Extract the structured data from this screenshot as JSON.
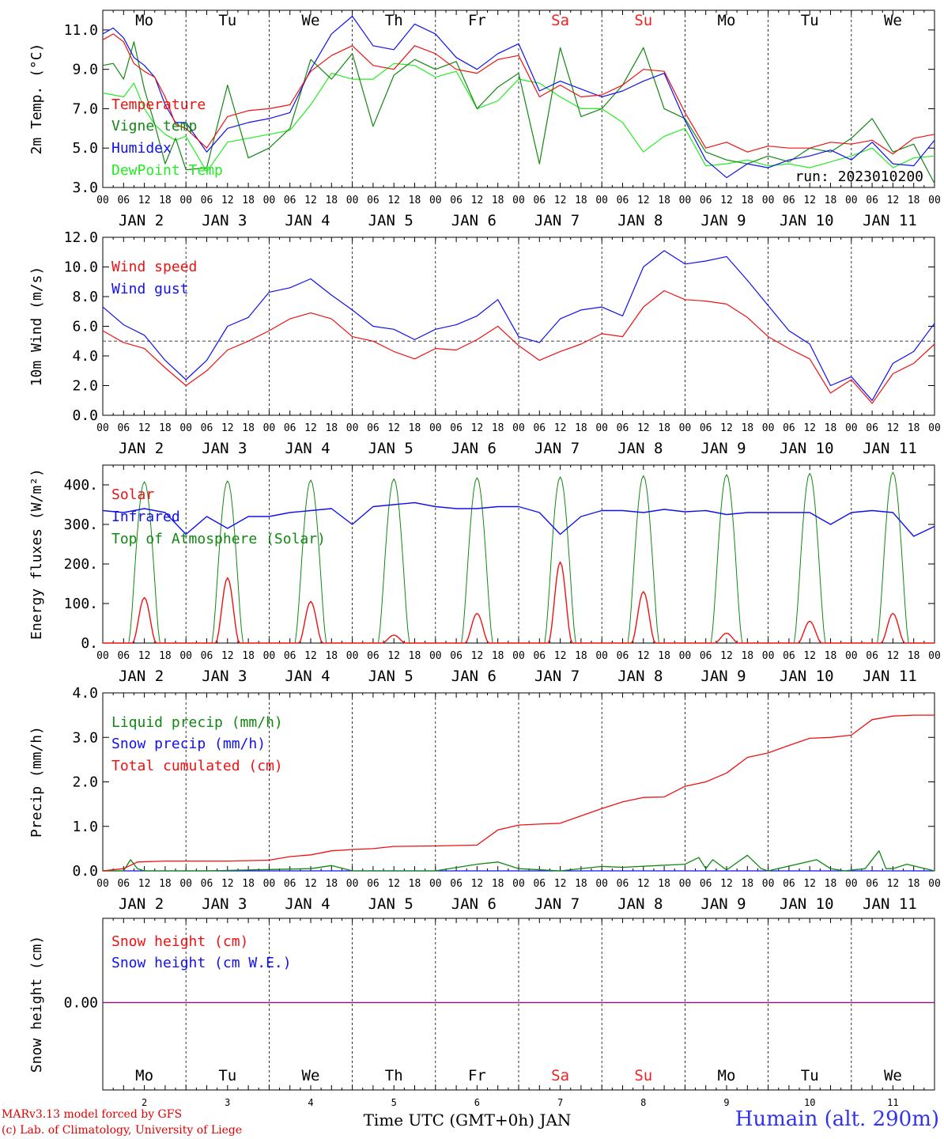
{
  "footer": {
    "credit_line1": "MARv3.13 model forced by GFS",
    "credit_line2": "(c) Lab. of Climatology, University of Liege",
    "station": "Humain (alt. 290m)",
    "xlabel": "Time UTC (GMT+0h) JAN",
    "run": "run: 2023010200"
  },
  "weekdays": [
    "Mo",
    "Tu",
    "We",
    "Th",
    "Fr",
    "Sa",
    "Su",
    "Mo",
    "Tu",
    "We"
  ],
  "weekend_color": "#ee2222",
  "day_numbers": [
    "2",
    "3",
    "4",
    "5",
    "6",
    "7",
    "8",
    "9",
    "10",
    "11"
  ],
  "date_labels": [
    "JAN  2",
    "JAN  3",
    "JAN  4",
    "JAN  5",
    "JAN  6",
    "JAN  7",
    "JAN  8",
    "JAN  9",
    "JAN 10",
    "JAN 11"
  ],
  "hour_ticks": [
    "00",
    "06",
    "12",
    "18"
  ],
  "chart_data": [
    {
      "type": "line",
      "ylabel": "2m Temp. (°C)",
      "ylim": [
        3.0,
        12.0
      ],
      "yticks": [
        "3.0",
        "5.0",
        "7.0",
        "9.0",
        "11.0"
      ],
      "x_unit": "hours since 00 UTC JAN 2",
      "series": [
        {
          "name": "Temperature",
          "color": "#ee1111",
          "x": [
            0,
            3,
            6,
            9,
            12,
            15,
            18,
            21,
            24,
            30,
            36,
            42,
            48,
            54,
            60,
            66,
            72,
            78,
            84,
            90,
            96,
            102,
            108,
            114,
            120,
            126,
            132,
            138,
            144,
            150,
            156,
            162,
            168,
            174,
            180,
            186,
            192,
            198,
            204,
            210,
            216,
            222,
            228,
            234,
            240
          ],
          "y": [
            10.5,
            10.8,
            10.4,
            9.3,
            8.9,
            8.6,
            7.6,
            6.2,
            6.0,
            5.0,
            6.6,
            6.9,
            7.0,
            7.2,
            8.9,
            9.7,
            10.2,
            9.2,
            9.0,
            10.2,
            9.8,
            9.0,
            8.8,
            9.5,
            9.7,
            7.6,
            8.2,
            7.6,
            7.7,
            8.2,
            9.0,
            8.9,
            6.8,
            5.0,
            5.3,
            4.8,
            5.1,
            5.0,
            5.0,
            5.3,
            5.2,
            5.4,
            4.7,
            5.5,
            5.7
          ]
        },
        {
          "name": "Vigne temp",
          "color": "#118811",
          "x": [
            0,
            3,
            6,
            9,
            12,
            15,
            18,
            21,
            24,
            30,
            36,
            42,
            48,
            54,
            60,
            66,
            72,
            78,
            84,
            90,
            96,
            102,
            108,
            114,
            120,
            126,
            132,
            138,
            144,
            150,
            156,
            162,
            168,
            174,
            180,
            186,
            192,
            198,
            204,
            210,
            216,
            222,
            228,
            234,
            240
          ],
          "y": [
            9.2,
            9.3,
            8.5,
            10.4,
            8.0,
            6.2,
            4.2,
            5.5,
            3.9,
            4.0,
            8.2,
            4.5,
            5.0,
            6.0,
            9.5,
            8.5,
            9.8,
            6.1,
            8.7,
            9.5,
            9.0,
            9.4,
            7.0,
            8.1,
            8.8,
            4.2,
            10.1,
            6.6,
            7.0,
            8.2,
            10.1,
            7.0,
            6.5,
            4.8,
            4.4,
            4.2,
            4.6,
            4.3,
            5.0,
            4.8,
            5.5,
            6.5,
            4.8,
            5.2,
            3.2
          ]
        },
        {
          "name": "Humidex",
          "color": "#1111ee",
          "x": [
            0,
            3,
            6,
            9,
            12,
            15,
            18,
            21,
            24,
            30,
            36,
            42,
            48,
            54,
            60,
            66,
            72,
            78,
            84,
            90,
            96,
            102,
            108,
            114,
            120,
            126,
            132,
            138,
            144,
            150,
            156,
            162,
            168,
            174,
            180,
            186,
            192,
            198,
            204,
            210,
            216,
            222,
            228,
            234,
            240
          ],
          "y": [
            10.8,
            11.1,
            10.6,
            9.6,
            9.2,
            8.6,
            7.2,
            6.3,
            6.3,
            4.8,
            6.0,
            6.3,
            6.5,
            6.8,
            9.0,
            10.8,
            11.7,
            10.2,
            10.0,
            11.3,
            10.8,
            9.6,
            9.0,
            9.8,
            10.3,
            7.9,
            8.4,
            8.0,
            7.6,
            7.9,
            8.4,
            8.8,
            6.4,
            4.4,
            3.5,
            4.2,
            4.0,
            4.4,
            4.6,
            4.9,
            4.4,
            5.3,
            4.2,
            4.1,
            5.4
          ]
        },
        {
          "name": "DewPoint Temp",
          "color": "#22ee22",
          "x": [
            0,
            3,
            6,
            9,
            12,
            15,
            18,
            21,
            24,
            30,
            36,
            42,
            48,
            54,
            60,
            66,
            72,
            78,
            84,
            90,
            96,
            102,
            108,
            114,
            120,
            126,
            132,
            138,
            144,
            150,
            156,
            162,
            168,
            174,
            180,
            186,
            192,
            198,
            204,
            210,
            216,
            222,
            228,
            234,
            240
          ],
          "y": [
            7.8,
            7.7,
            7.6,
            8.3,
            7.0,
            6.2,
            5.7,
            5.4,
            5.6,
            3.8,
            5.3,
            5.5,
            5.7,
            5.9,
            7.2,
            8.8,
            8.5,
            8.5,
            9.3,
            9.2,
            8.6,
            8.9,
            7.0,
            7.4,
            8.5,
            8.3,
            7.6,
            7.0,
            7.0,
            6.3,
            4.8,
            5.6,
            6.0,
            4.1,
            4.2,
            4.4,
            4.1,
            4.2,
            4.0,
            4.3,
            4.6,
            5.0,
            4.0,
            4.5,
            4.6
          ]
        }
      ]
    },
    {
      "type": "line",
      "ylabel": "10m Wind (m/s)",
      "ylim": [
        0.0,
        12.0
      ],
      "yticks": [
        "0.0",
        "2.0",
        "4.0",
        "6.0",
        "8.0",
        "10.0",
        "12.0"
      ],
      "reference_line": 5.0,
      "series": [
        {
          "name": "Wind speed",
          "color": "#ee1111",
          "x": [
            0,
            6,
            12,
            18,
            24,
            30,
            36,
            42,
            48,
            54,
            60,
            66,
            72,
            78,
            84,
            90,
            96,
            102,
            108,
            114,
            120,
            126,
            132,
            138,
            144,
            150,
            156,
            162,
            168,
            174,
            180,
            186,
            192,
            198,
            204,
            210,
            216,
            222,
            228,
            234,
            240
          ],
          "y": [
            5.7,
            4.9,
            4.5,
            3.2,
            2.0,
            3.0,
            4.4,
            5.0,
            5.7,
            6.5,
            6.9,
            6.5,
            5.3,
            5.0,
            4.3,
            3.8,
            4.5,
            4.4,
            5.1,
            6.0,
            4.7,
            3.7,
            4.3,
            4.8,
            5.5,
            5.3,
            7.3,
            8.4,
            7.8,
            7.7,
            7.5,
            6.6,
            5.3,
            4.5,
            3.8,
            1.5,
            2.4,
            0.8,
            2.8,
            3.5,
            4.8
          ]
        },
        {
          "name": "Wind gust",
          "color": "#1111ee",
          "x": [
            0,
            6,
            12,
            18,
            24,
            30,
            36,
            42,
            48,
            54,
            60,
            66,
            72,
            78,
            84,
            90,
            96,
            102,
            108,
            114,
            120,
            126,
            132,
            138,
            144,
            150,
            156,
            162,
            168,
            174,
            180,
            186,
            192,
            198,
            204,
            210,
            216,
            222,
            228,
            234,
            240
          ],
          "y": [
            7.3,
            6.1,
            5.4,
            3.7,
            2.4,
            3.7,
            6.0,
            6.6,
            8.3,
            8.6,
            9.2,
            8.1,
            7.1,
            6.0,
            5.8,
            5.1,
            5.8,
            6.1,
            6.7,
            7.8,
            5.3,
            4.9,
            6.5,
            7.1,
            7.3,
            6.7,
            10.0,
            11.1,
            10.2,
            10.4,
            10.7,
            9.1,
            7.4,
            5.7,
            4.8,
            2.0,
            2.6,
            1.0,
            3.5,
            4.3,
            6.2
          ]
        }
      ]
    },
    {
      "type": "line",
      "ylabel": "Energy fluxes (W/m²)",
      "ylim": [
        0,
        450
      ],
      "yticks": [
        "0.",
        "100.",
        "200.",
        "300.",
        "400."
      ],
      "series": [
        {
          "name": "Solar",
          "color": "#ee1111",
          "day_peaks": [
            115,
            165,
            105,
            20,
            75,
            205,
            130,
            25,
            55,
            75
          ]
        },
        {
          "name": "Infrared",
          "color": "#1111ee",
          "x": [
            0,
            6,
            12,
            18,
            24,
            30,
            36,
            42,
            48,
            54,
            60,
            66,
            72,
            78,
            84,
            90,
            96,
            102,
            108,
            114,
            120,
            126,
            132,
            138,
            144,
            150,
            156,
            162,
            168,
            174,
            180,
            186,
            192,
            198,
            204,
            210,
            216,
            222,
            228,
            234,
            240
          ],
          "y": [
            335,
            330,
            340,
            330,
            275,
            320,
            290,
            320,
            320,
            330,
            335,
            340,
            300,
            345,
            350,
            355,
            345,
            340,
            340,
            345,
            345,
            330,
            275,
            320,
            335,
            335,
            330,
            338,
            332,
            335,
            325,
            330,
            330,
            330,
            330,
            300,
            330,
            335,
            330,
            270,
            295
          ]
        },
        {
          "name": "Top of Atmosphere (Solar)",
          "color": "#118811",
          "day_peaks": [
            408,
            410,
            412,
            415,
            418,
            420,
            423,
            426,
            429,
            432
          ]
        }
      ]
    },
    {
      "type": "line",
      "ylabel": "Precip (mm/h)",
      "ylim": [
        0.0,
        4.0
      ],
      "yticks": [
        "0.0",
        "1.0",
        "2.0",
        "3.0",
        "4.0"
      ],
      "series": [
        {
          "name": "Liquid precip (mm/h)",
          "color": "#118811",
          "x": [
            0,
            6,
            8,
            10,
            12,
            30,
            48,
            60,
            66,
            72,
            96,
            108,
            114,
            120,
            132,
            144,
            150,
            160,
            168,
            172,
            174,
            176,
            180,
            186,
            190,
            192,
            206,
            210,
            214,
            220,
            224,
            226,
            228,
            232,
            240
          ],
          "y": [
            0,
            0,
            0.25,
            0.05,
            0,
            0,
            0.03,
            0.05,
            0.12,
            0,
            0,
            0.15,
            0.2,
            0.05,
            0,
            0.1,
            0.08,
            0.12,
            0.15,
            0.3,
            0.05,
            0.25,
            0.02,
            0.35,
            0.05,
            0,
            0.25,
            0.05,
            0,
            0.05,
            0.45,
            0.05,
            0.05,
            0.15,
            0
          ]
        },
        {
          "name": "Snow precip (mm/h)",
          "color": "#1111ee",
          "x": [
            0,
            240
          ],
          "y": [
            0,
            0
          ]
        },
        {
          "name": "Total cumulated (cm)",
          "color": "#ee1111",
          "x": [
            0,
            6,
            10,
            18,
            24,
            36,
            48,
            54,
            60,
            66,
            72,
            78,
            84,
            96,
            108,
            114,
            120,
            126,
            132,
            144,
            150,
            156,
            162,
            168,
            174,
            180,
            186,
            192,
            198,
            204,
            210,
            216,
            222,
            228,
            234,
            240
          ],
          "y": [
            0,
            0.05,
            0.2,
            0.22,
            0.22,
            0.22,
            0.24,
            0.32,
            0.36,
            0.45,
            0.48,
            0.5,
            0.55,
            0.56,
            0.58,
            0.92,
            1.03,
            1.05,
            1.07,
            1.4,
            1.55,
            1.65,
            1.66,
            1.9,
            2.0,
            2.2,
            2.55,
            2.65,
            2.82,
            2.98,
            3.0,
            3.05,
            3.4,
            3.48,
            3.5,
            3.5
          ]
        }
      ]
    },
    {
      "type": "line",
      "ylabel": "Snow height (cm)",
      "yticks": [
        "0.00"
      ],
      "series": [
        {
          "name": "Snow height (cm)",
          "color": "#ee1111",
          "x": [
            0,
            240
          ],
          "y": [
            0,
            0
          ]
        },
        {
          "name": "Snow height (cm W.E.)",
          "color": "#1111ee",
          "x": [
            0,
            240
          ],
          "y": [
            0,
            0
          ]
        }
      ]
    }
  ]
}
